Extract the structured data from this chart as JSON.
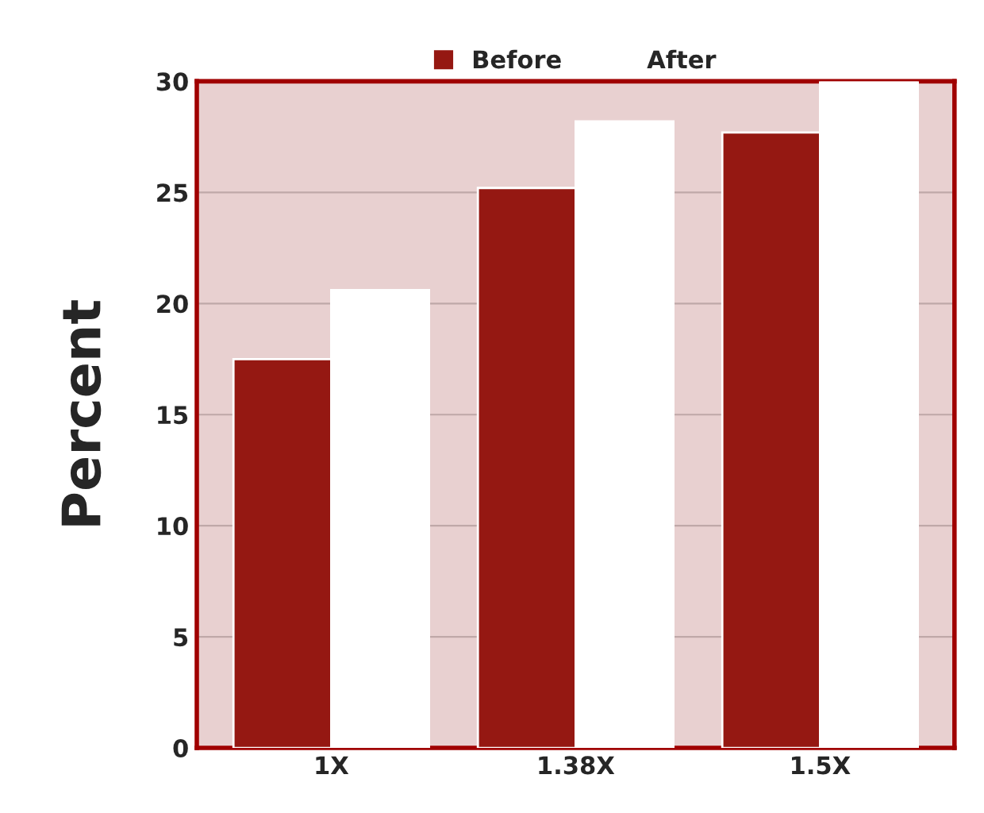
{
  "chart_data": {
    "type": "bar",
    "ylabel": "Percent",
    "categories": [
      "1X",
      "1.38X",
      "1.5X"
    ],
    "series": [
      {
        "name": "Before",
        "color": "#951812",
        "values": [
          17.5,
          25.2,
          27.7
        ]
      },
      {
        "name": "After",
        "color": "#ffffff",
        "values": [
          20.6,
          28.2,
          30
        ]
      }
    ],
    "ylim": [
      0,
      30
    ],
    "yticks": [
      0,
      5,
      10,
      15,
      20,
      25,
      30
    ],
    "grid": "y",
    "legend": "top"
  }
}
